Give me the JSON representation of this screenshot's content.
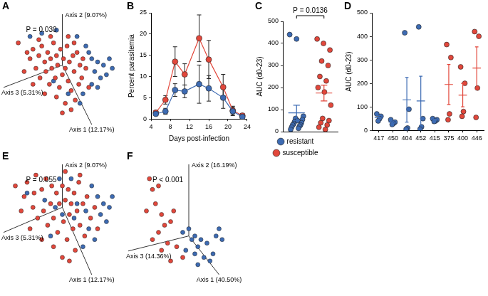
{
  "chart_data": [
    {
      "panel": "A",
      "type": "scatter",
      "annotation": "P = 0.030",
      "axis_labels": [
        "Axis 1 (12.17%)",
        "Axis 2 (9.07%)",
        "Axis 3 (5.31%)"
      ],
      "tick_labels": false,
      "series": [
        {
          "color": "#e2473b",
          "values": [
            {
              "x": -0.75,
              "y": 0.35
            },
            {
              "x": -0.6,
              "y": 0.2
            },
            {
              "x": -0.55,
              "y": 0.1
            },
            {
              "x": -0.5,
              "y": 0.25
            },
            {
              "x": -0.45,
              "y": -0.05
            },
            {
              "x": -0.4,
              "y": 0.15
            },
            {
              "x": -0.38,
              "y": -0.2
            },
            {
              "x": -0.35,
              "y": 0.3
            },
            {
              "x": -0.3,
              "y": 0.05
            },
            {
              "x": -0.28,
              "y": -0.1
            },
            {
              "x": -0.25,
              "y": 0.2
            },
            {
              "x": -0.22,
              "y": -0.3
            },
            {
              "x": -0.2,
              "y": 0.1
            },
            {
              "x": -0.18,
              "y": -0.05
            },
            {
              "x": -0.15,
              "y": 0.35
            },
            {
              "x": -0.12,
              "y": -0.2
            },
            {
              "x": -0.1,
              "y": 0.15
            },
            {
              "x": -0.08,
              "y": 0.0
            },
            {
              "x": -0.05,
              "y": -0.35
            },
            {
              "x": -0.03,
              "y": 0.25
            },
            {
              "x": 0.0,
              "y": -0.15
            },
            {
              "x": 0.02,
              "y": 0.1
            },
            {
              "x": 0.05,
              "y": -0.05
            },
            {
              "x": 0.08,
              "y": 0.3
            },
            {
              "x": 0.1,
              "y": -0.25
            },
            {
              "x": 0.12,
              "y": 0.05
            },
            {
              "x": 0.15,
              "y": -0.4
            },
            {
              "x": 0.18,
              "y": 0.15
            },
            {
              "x": 0.2,
              "y": -0.1
            },
            {
              "x": 0.22,
              "y": -0.55
            },
            {
              "x": 0.25,
              "y": 0.2
            },
            {
              "x": 0.28,
              "y": -0.3
            },
            {
              "x": 0.3,
              "y": 0.0
            },
            {
              "x": 0.33,
              "y": -0.2
            },
            {
              "x": 0.35,
              "y": 0.1
            },
            {
              "x": 0.4,
              "y": -0.05
            },
            {
              "x": 0.45,
              "y": -0.35
            },
            {
              "x": -0.65,
              "y": -0.1
            },
            {
              "x": -0.5,
              "y": -0.3
            },
            {
              "x": -0.3,
              "y": -0.45
            },
            {
              "x": -0.1,
              "y": -0.5
            },
            {
              "x": 0.05,
              "y": -0.6
            },
            {
              "x": -0.2,
              "y": 0.45
            },
            {
              "x": 0.1,
              "y": 0.45
            },
            {
              "x": -0.4,
              "y": 0.4
            },
            {
              "x": 0.0,
              "y": -0.75
            },
            {
              "x": 0.15,
              "y": -0.7
            },
            {
              "x": 0.2,
              "y": 0.35
            }
          ]
        },
        {
          "color": "#3d6bb3",
          "values": [
            {
              "x": 0.5,
              "y": 0.1
            },
            {
              "x": 0.55,
              "y": -0.1
            },
            {
              "x": 0.6,
              "y": 0.05
            },
            {
              "x": 0.65,
              "y": -0.2
            },
            {
              "x": 0.7,
              "y": 0.0
            },
            {
              "x": 0.75,
              "y": -0.15
            },
            {
              "x": 0.45,
              "y": 0.2
            },
            {
              "x": 0.5,
              "y": -0.3
            },
            {
              "x": 0.8,
              "y": 0.1
            },
            {
              "x": 0.4,
              "y": 0.3
            },
            {
              "x": 0.35,
              "y": -0.45
            },
            {
              "x": 0.6,
              "y": -0.35
            },
            {
              "x": -0.35,
              "y": 0.5
            },
            {
              "x": -0.1,
              "y": 0.55
            },
            {
              "x": 0.25,
              "y": 0.45
            },
            {
              "x": 0.85,
              "y": -0.05
            },
            {
              "x": -0.15,
              "y": -0.25
            },
            {
              "x": 0.1,
              "y": -0.45
            },
            {
              "x": -0.55,
              "y": 0.45
            },
            {
              "x": 0.3,
              "y": -0.6
            }
          ]
        }
      ]
    },
    {
      "panel": "B",
      "type": "line",
      "x_label": "Days post-infection",
      "y_label": "Percent parasitemia",
      "grid": false,
      "x": [
        5,
        7,
        9,
        11,
        14,
        16,
        19,
        21,
        23
      ],
      "xlim": [
        4,
        24
      ],
      "xticks": [
        4,
        8,
        12,
        16,
        20,
        24
      ],
      "ylim": [
        0,
        25
      ],
      "yticks": [
        0,
        5,
        10,
        15,
        20,
        25
      ],
      "series": [
        {
          "color": "#3d6bb3",
          "values": [
            1.2,
            1.8,
            6.8,
            6.5,
            8.2,
            7.2,
            5,
            1.8,
            0.5
          ],
          "errors": [
            0.3,
            0.7,
            1.5,
            1.5,
            4.5,
            3,
            2.5,
            1,
            0.3
          ]
        },
        {
          "color": "#e2473b",
          "values": [
            1.5,
            4.5,
            13.5,
            10.5,
            19,
            14,
            7.5,
            2,
            0.8
          ],
          "errors": [
            0.5,
            1,
            3.5,
            2.5,
            5.5,
            4.5,
            3,
            1,
            0.5
          ]
        }
      ]
    },
    {
      "panel": "C",
      "type": "strip",
      "annotation": "P = 0.0136",
      "y_label": "AUC (d0-23)",
      "grid": false,
      "ylim": [
        0,
        500
      ],
      "yticks": [
        0,
        100,
        200,
        300,
        400,
        500
      ],
      "legend": "bottom",
      "tick_labels": "y",
      "series": [
        {
          "name": "resistant",
          "color": "#3d6bb3",
          "values": [
            440,
            420,
            70,
            60,
            55,
            45,
            40,
            35,
            30,
            30,
            25,
            20,
            15,
            10,
            50
          ],
          "mean": 85,
          "sem": 35
        },
        {
          "name": "susceptible",
          "color": "#e2473b",
          "values": [
            420,
            400,
            370,
            320,
            300,
            250,
            230,
            200,
            180,
            120,
            60,
            50,
            40,
            30,
            20,
            10
          ],
          "mean": 175,
          "sem": 36
        }
      ]
    },
    {
      "panel": "D",
      "type": "strip",
      "y_label": "AUC (d0-23)",
      "grid": false,
      "ylim": [
        0,
        500
      ],
      "yticks": [
        0,
        100,
        200,
        300,
        400,
        500
      ],
      "categories": [
        "417",
        "450",
        "404",
        "452",
        "415",
        "375",
        "400",
        "446"
      ],
      "colors": [
        "#3d6bb3",
        "#3d6bb3",
        "#3d6bb3",
        "#3d6bb3",
        "#3d6bb3",
        "#e2473b",
        "#e2473b",
        "#e2473b"
      ],
      "values": [
        [
          70,
          60,
          50,
          40
        ],
        [
          45,
          35,
          30,
          25
        ],
        [
          415,
          90,
          10,
          5
        ],
        [
          440,
          50,
          15,
          5
        ],
        [
          50,
          45,
          40,
          38
        ],
        [
          365,
          310,
          70,
          45
        ],
        [
          270,
          200,
          80,
          60
        ],
        [
          420,
          400,
          180,
          55
        ]
      ],
      "mean": [
        55,
        35,
        130,
        125,
        45,
        195,
        150,
        265
      ],
      "sem": [
        8,
        5,
        95,
        105,
        3,
        85,
        50,
        90
      ]
    },
    {
      "panel": "E",
      "type": "scatter",
      "annotation": "P = 0.055",
      "axis_labels": [
        "Axis 1 (12.17%)",
        "Axis 2 (9.07%)",
        "Axis 3 (5.31%)"
      ],
      "tick_labels": false,
      "series": [
        {
          "color": "#e2473b",
          "values": [
            {
              "x": -0.8,
              "y": 0.3
            },
            {
              "x": -0.65,
              "y": 0.15
            },
            {
              "x": -0.6,
              "y": 0.35
            },
            {
              "x": -0.5,
              "y": 0.0
            },
            {
              "x": -0.48,
              "y": 0.2
            },
            {
              "x": -0.42,
              "y": -0.15
            },
            {
              "x": -0.35,
              "y": 0.25
            },
            {
              "x": -0.32,
              "y": -0.05
            },
            {
              "x": -0.28,
              "y": 0.4
            },
            {
              "x": -0.25,
              "y": -0.25
            },
            {
              "x": -0.2,
              "y": 0.05
            },
            {
              "x": -0.18,
              "y": 0.3
            },
            {
              "x": -0.15,
              "y": -0.15
            },
            {
              "x": -0.1,
              "y": 0.2
            },
            {
              "x": -0.08,
              "y": -0.35
            },
            {
              "x": -0.05,
              "y": 0.05
            },
            {
              "x": 0.0,
              "y": 0.3
            },
            {
              "x": 0.02,
              "y": -0.2
            },
            {
              "x": 0.05,
              "y": 0.1
            },
            {
              "x": 0.08,
              "y": -0.45
            },
            {
              "x": 0.1,
              "y": 0.25
            },
            {
              "x": 0.12,
              "y": -0.1
            },
            {
              "x": 0.15,
              "y": 0.05
            },
            {
              "x": 0.18,
              "y": -0.3
            },
            {
              "x": 0.2,
              "y": 0.2
            },
            {
              "x": 0.22,
              "y": -0.6
            },
            {
              "x": 0.25,
              "y": -0.05
            },
            {
              "x": 0.28,
              "y": 0.35
            },
            {
              "x": 0.3,
              "y": -0.25
            },
            {
              "x": 0.35,
              "y": 0.05
            },
            {
              "x": 0.38,
              "y": -0.4
            },
            {
              "x": 0.42,
              "y": 0.15
            },
            {
              "x": 0.48,
              "y": -0.15
            },
            {
              "x": 0.55,
              "y": 0.0
            },
            {
              "x": -0.55,
              "y": -0.3
            },
            {
              "x": -0.35,
              "y": -0.45
            },
            {
              "x": -0.15,
              "y": -0.55
            },
            {
              "x": 0.0,
              "y": -0.7
            },
            {
              "x": 0.12,
              "y": -0.75
            },
            {
              "x": -0.45,
              "y": 0.45
            },
            {
              "x": 0.6,
              "y": -0.3
            },
            {
              "x": 0.05,
              "y": 0.5
            },
            {
              "x": -0.7,
              "y": -0.05
            },
            {
              "x": 0.3,
              "y": 0.45
            }
          ]
        },
        {
          "color": "#3d6bb3",
          "values": [
            {
              "x": 0.6,
              "y": 0.15
            },
            {
              "x": 0.65,
              "y": -0.1
            },
            {
              "x": 0.7,
              "y": 0.05
            },
            {
              "x": 0.75,
              "y": -0.2
            },
            {
              "x": 0.5,
              "y": 0.3
            },
            {
              "x": 0.45,
              "y": -0.3
            },
            {
              "x": 0.4,
              "y": -0.05
            },
            {
              "x": 0.55,
              "y": -0.45
            },
            {
              "x": 0.8,
              "y": 0.0
            },
            {
              "x": -0.3,
              "y": 0.1
            },
            {
              "x": -0.05,
              "y": 0.4
            },
            {
              "x": 0.2,
              "y": -0.15
            },
            {
              "x": -0.2,
              "y": -0.4
            },
            {
              "x": 0.15,
              "y": 0.4
            },
            {
              "x": -0.6,
              "y": 0.2
            },
            {
              "x": 0.35,
              "y": -0.55
            },
            {
              "x": 0.85,
              "y": 0.15
            },
            {
              "x": -0.12,
              "y": 0.0
            },
            {
              "x": 0.25,
              "y": 0.05
            },
            {
              "x": 0.0,
              "y": -0.1
            }
          ]
        }
      ]
    },
    {
      "panel": "F",
      "type": "scatter",
      "annotation": "P < 0.001",
      "axis_labels": [
        "Axis 1 (40.50%)",
        "Axis 2 (16.19%)",
        "Axis 3 (14.36%)"
      ],
      "tick_labels": false,
      "series": [
        {
          "color": "#e2473b",
          "values": [
            {
              "x": -0.65,
              "y": 0.8
            },
            {
              "x": -0.6,
              "y": 0.65
            },
            {
              "x": -0.5,
              "y": 0.7
            },
            {
              "x": -0.55,
              "y": 0.45
            },
            {
              "x": -0.45,
              "y": 0.3
            },
            {
              "x": -0.7,
              "y": 0.35
            },
            {
              "x": -0.4,
              "y": 0.15
            },
            {
              "x": -0.3,
              "y": 0.2
            },
            {
              "x": -0.5,
              "y": 0.05
            },
            {
              "x": -0.6,
              "y": -0.05
            },
            {
              "x": -0.35,
              "y": -0.1
            },
            {
              "x": -0.2,
              "y": -0.15
            },
            {
              "x": -0.45,
              "y": -0.2
            },
            {
              "x": -0.25,
              "y": 0.35
            },
            {
              "x": -0.1,
              "y": -0.3
            },
            {
              "x": -0.3,
              "y": -0.35
            }
          ]
        },
        {
          "color": "#3d6bb3",
          "values": [
            {
              "x": 0.0,
              "y": 0.1
            },
            {
              "x": 0.05,
              "y": -0.05
            },
            {
              "x": 0.1,
              "y": 0.0
            },
            {
              "x": -0.05,
              "y": -0.2
            },
            {
              "x": 0.15,
              "y": -0.15
            },
            {
              "x": 0.2,
              "y": -0.05
            },
            {
              "x": 0.1,
              "y": -0.25
            },
            {
              "x": 0.25,
              "y": -0.3
            },
            {
              "x": 0.3,
              "y": -0.1
            },
            {
              "x": 0.45,
              "y": 0.0
            },
            {
              "x": 0.5,
              "y": 0.1
            },
            {
              "x": 0.55,
              "y": -0.05
            },
            {
              "x": 0.35,
              "y": -0.35
            },
            {
              "x": 0.15,
              "y": -0.4
            },
            {
              "x": 0.4,
              "y": -0.25
            },
            {
              "x": -0.1,
              "y": 0.05
            }
          ]
        }
      ]
    }
  ]
}
